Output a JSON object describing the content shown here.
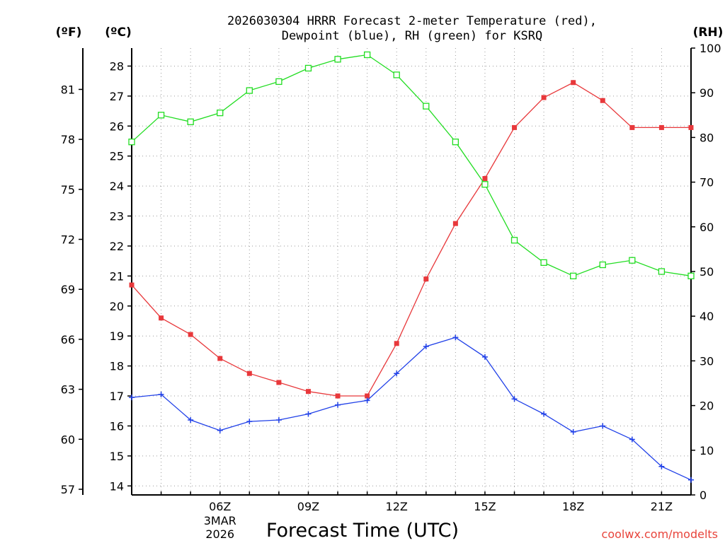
{
  "chart_data": {
    "type": "line",
    "title": "2026030304 HRRR Forecast 2-meter Temperature (red),",
    "title_line2": "Dewpoint (blue), RH (green) for KSRQ",
    "xlabel": "Forecast Time (UTC)",
    "credit": "coolwx.com/modelts",
    "units": {
      "fahrenheit": "(ºF)",
      "celsius": "(ºC)",
      "rh": "(RH)"
    },
    "x": [
      3,
      4,
      5,
      6,
      7,
      8,
      9,
      10,
      11,
      12,
      13,
      14,
      15,
      16,
      17,
      18,
      19,
      20,
      21,
      22
    ],
    "xlim": [
      3,
      22
    ],
    "x_ticks": [
      {
        "x": 6,
        "label": "06Z",
        "sub1": "3MAR",
        "sub2": "2026"
      },
      {
        "x": 9,
        "label": "09Z"
      },
      {
        "x": 12,
        "label": "12Z"
      },
      {
        "x": 15,
        "label": "15Z"
      },
      {
        "x": 18,
        "label": "18Z"
      },
      {
        "x": 21,
        "label": "21Z"
      }
    ],
    "ylim_c": [
      13.7,
      28.6
    ],
    "yticks_c": [
      "14",
      "15",
      "16",
      "17",
      "18",
      "19",
      "20",
      "21",
      "22",
      "23",
      "24",
      "25",
      "26",
      "27",
      "28"
    ],
    "yticks_f": [
      "57",
      "60",
      "63",
      "66",
      "69",
      "72",
      "75",
      "78",
      "81"
    ],
    "ylim_rh": [
      0,
      100
    ],
    "yticks_rh": [
      "0",
      "10",
      "20",
      "30",
      "40",
      "50",
      "60",
      "70",
      "80",
      "90",
      "100"
    ],
    "series": [
      {
        "name": "Temperature",
        "axis": "c",
        "color": "#e8383b",
        "marker": "filled-square",
        "values": [
          20.7,
          19.6,
          19.05,
          18.25,
          17.75,
          17.45,
          17.15,
          17.0,
          17.0,
          18.75,
          20.9,
          22.75,
          24.25,
          25.95,
          26.95,
          27.45,
          26.85,
          25.95,
          25.95,
          25.95
        ]
      },
      {
        "name": "Dewpoint",
        "axis": "c",
        "color": "#2040e8",
        "marker": "plus",
        "values": [
          16.95,
          17.05,
          16.2,
          15.85,
          16.15,
          16.2,
          16.4,
          16.7,
          16.85,
          17.75,
          18.65,
          18.95,
          18.3,
          16.9,
          16.4,
          15.8,
          16.0,
          15.55,
          14.65,
          14.2
        ]
      },
      {
        "name": "RH",
        "axis": "rh",
        "color": "#22dd22",
        "marker": "open-square",
        "values": [
          79,
          85,
          83.5,
          85.5,
          90.5,
          92.5,
          95.5,
          97.5,
          98.5,
          94,
          87,
          79,
          69.5,
          57,
          52,
          49,
          51.5,
          52.5,
          50,
          49
        ]
      }
    ]
  }
}
